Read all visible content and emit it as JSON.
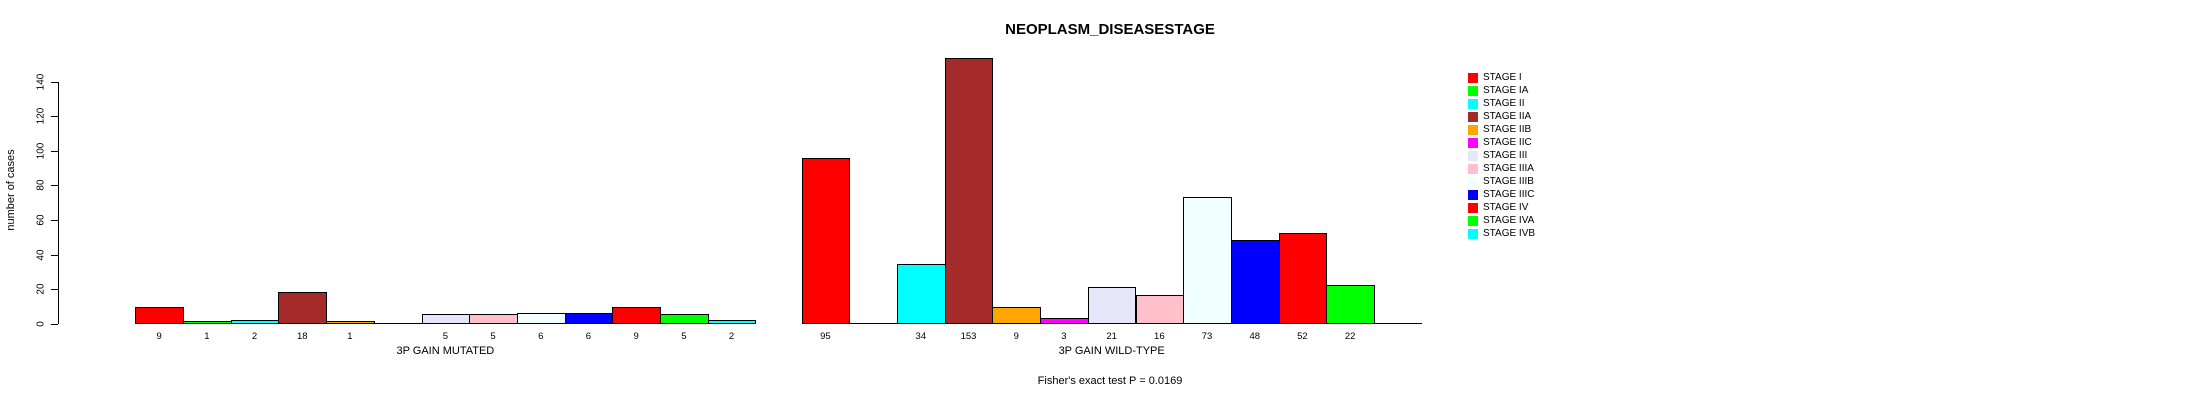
{
  "chart_data": {
    "type": "bar",
    "title": "NEOPLASM_DISEASESTAGE",
    "ylabel": "number of cases",
    "xlabel": "",
    "ylim": [
      0,
      140
    ],
    "yticks": [
      0,
      20,
      40,
      60,
      80,
      100,
      120,
      140
    ],
    "grid": false,
    "background": "#FFFFFF",
    "bar_border_color": "#000000",
    "legend_position": "right",
    "categories": [
      "STAGE I",
      "STAGE IA",
      "STAGE II",
      "STAGE IIA",
      "STAGE IIB",
      "STAGE IIC",
      "STAGE III",
      "STAGE IIIA",
      "STAGE IIIB",
      "STAGE IIIC",
      "STAGE IV",
      "STAGE IVA",
      "STAGE IVB"
    ],
    "palette": [
      "#FF0000",
      "#00FF00",
      "#00FFFF",
      "#A52A2A",
      "#FFA500",
      "#FF00FF",
      "#E6E6FA",
      "#FFC0CB",
      "#F0FFFF",
      "#0000FF",
      "#FF0000",
      "#00FF00",
      "#00FFFF"
    ],
    "series": [
      {
        "name": "3P GAIN MUTATED",
        "values": [
          9,
          1,
          2,
          18,
          1,
          0,
          5,
          5,
          6,
          6,
          9,
          5,
          2
        ]
      },
      {
        "name": "3P GAIN WILD-TYPE",
        "values": [
          95,
          0,
          34,
          153,
          9,
          3,
          21,
          16,
          73,
          48,
          52,
          22,
          0
        ]
      }
    ],
    "zero_values_hidden": true,
    "annotation": "Fisher's exact test P = 0.0169"
  },
  "legend": {
    "items": [
      {
        "label": "STAGE I",
        "color": "#FF0000"
      },
      {
        "label": "STAGE IA",
        "color": "#00FF00"
      },
      {
        "label": "STAGE II",
        "color": "#00FFFF"
      },
      {
        "label": "STAGE IIA",
        "color": "#A52A2A"
      },
      {
        "label": "STAGE IIB",
        "color": "#FFA500"
      },
      {
        "label": "STAGE IIC",
        "color": "#FF00FF"
      },
      {
        "label": "STAGE III",
        "color": "#E6E6FA"
      },
      {
        "label": "STAGE IIIA",
        "color": "#FFC0CB"
      },
      {
        "label": "STAGE IIIB",
        "color": "#F0FFFF"
      },
      {
        "label": "STAGE IIIC",
        "color": "#0000FF"
      },
      {
        "label": "STAGE IV",
        "color": "#FF0000"
      },
      {
        "label": "STAGE IVA",
        "color": "#00FF00"
      },
      {
        "label": "STAGE IVB",
        "color": "#00FFFF"
      }
    ]
  }
}
